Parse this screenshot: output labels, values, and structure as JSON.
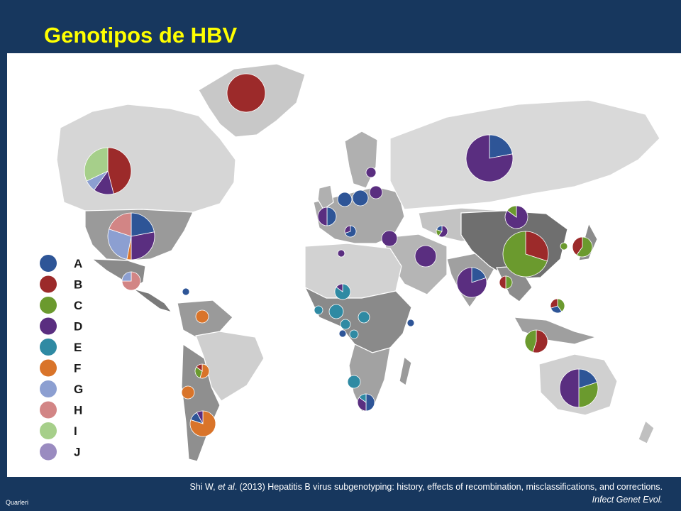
{
  "slide": {
    "title": "Genotipos de HBV",
    "author_footer": "Quarleri"
  },
  "citation": {
    "authors": "Shi W, ",
    "etal": "et al",
    "rest": ". (2013) Hepatitis B virus subgenotyping: history, effects of recombination, misclassifications, and corrections.",
    "journal": "Infect Genet Evol."
  },
  "legend": [
    {
      "label": "A",
      "color": "#2e5597"
    },
    {
      "label": "B",
      "color": "#9c2a2a"
    },
    {
      "label": "C",
      "color": "#6b9a2e"
    },
    {
      "label": "D",
      "color": "#5a2e80"
    },
    {
      "label": "E",
      "color": "#2f8aa3"
    },
    {
      "label": "F",
      "color": "#d9742a"
    },
    {
      "label": "G",
      "color": "#8c9fd1"
    },
    {
      "label": "H",
      "color": "#d28585"
    },
    {
      "label": "I",
      "color": "#a6cf8a"
    },
    {
      "label": "J",
      "color": "#9a8bc0"
    }
  ],
  "map_regions": [
    {
      "name": "greenland",
      "shade": "#c8c8c8"
    },
    {
      "name": "canada",
      "shade": "#d6d6d6"
    },
    {
      "name": "usa",
      "shade": "#9a9a9a"
    },
    {
      "name": "mexico",
      "shade": "#8a8a8a"
    },
    {
      "name": "central-america",
      "shade": "#7a7a7a"
    },
    {
      "name": "south-america-north",
      "shade": "#9a9a9a"
    },
    {
      "name": "brazil",
      "shade": "#cfcfcf"
    },
    {
      "name": "south-america-south",
      "shade": "#8f8f8f"
    },
    {
      "name": "europe",
      "shade": "#a8a8a8"
    },
    {
      "name": "russia",
      "shade": "#d9d9d9"
    },
    {
      "name": "middle-east",
      "shade": "#b5b5b5"
    },
    {
      "name": "north-africa",
      "shade": "#d2d2d2"
    },
    {
      "name": "africa-central",
      "shade": "#8a8a8a"
    },
    {
      "name": "africa-south",
      "shade": "#a2a2a2"
    },
    {
      "name": "central-asia",
      "shade": "#c3c3c3"
    },
    {
      "name": "india",
      "shade": "#a0a0a0"
    },
    {
      "name": "china",
      "shade": "#6f6f6f"
    },
    {
      "name": "southeast-asia",
      "shade": "#8c8c8c"
    },
    {
      "name": "indonesia",
      "shade": "#9f9f9f"
    },
    {
      "name": "australia",
      "shade": "#d0d0d0"
    },
    {
      "name": "japan",
      "shade": "#8c8c8c"
    },
    {
      "name": "scandinavia",
      "shade": "#b0b0b0"
    },
    {
      "name": "new-zealand",
      "shade": "#c0c0c0"
    },
    {
      "name": "madagascar",
      "shade": "#9a9a9a"
    },
    {
      "name": "uk-ireland",
      "shade": "#b0b0b0"
    }
  ],
  "pie_charts": [
    {
      "place": "Greenland",
      "slices": [
        {
          "g": "B",
          "v": 1
        }
      ]
    },
    {
      "place": "Canada",
      "slices": [
        {
          "g": "B",
          "v": 0.46
        },
        {
          "g": "D",
          "v": 0.14
        },
        {
          "g": "G",
          "v": 0.08
        },
        {
          "g": "I",
          "v": 0.32
        }
      ]
    },
    {
      "place": "USA",
      "slices": [
        {
          "g": "A",
          "v": 0.22
        },
        {
          "g": "D",
          "v": 0.28
        },
        {
          "g": "F",
          "v": 0.03
        },
        {
          "g": "G",
          "v": 0.27
        },
        {
          "g": "H",
          "v": 0.2
        }
      ]
    },
    {
      "place": "Mexico",
      "slices": [
        {
          "g": "H",
          "v": 0.75
        },
        {
          "g": "G",
          "v": 0.25
        }
      ]
    },
    {
      "place": "Caribbean",
      "slices": [
        {
          "g": "A",
          "v": 1
        }
      ]
    },
    {
      "place": "Venezuela",
      "slices": [
        {
          "g": "F",
          "v": 1
        }
      ]
    },
    {
      "place": "Bolivia",
      "slices": [
        {
          "g": "F",
          "v": 0.55
        },
        {
          "g": "C",
          "v": 0.3
        },
        {
          "g": "B",
          "v": 0.15
        }
      ]
    },
    {
      "place": "Chile",
      "slices": [
        {
          "g": "F",
          "v": 1
        }
      ]
    },
    {
      "place": "Argentina",
      "slices": [
        {
          "g": "F",
          "v": 0.8
        },
        {
          "g": "A",
          "v": 0.12
        },
        {
          "g": "D",
          "v": 0.08
        }
      ]
    },
    {
      "place": "Russia",
      "slices": [
        {
          "g": "A",
          "v": 0.22
        },
        {
          "g": "D",
          "v": 0.78
        }
      ]
    },
    {
      "place": "Scandinavia",
      "slices": [
        {
          "g": "D",
          "v": 1
        }
      ]
    },
    {
      "place": "UK",
      "slices": [
        {
          "g": "A",
          "v": 0.5
        },
        {
          "g": "D",
          "v": 0.5
        }
      ]
    },
    {
      "place": "Germany",
      "slices": [
        {
          "g": "A",
          "v": 1
        }
      ]
    },
    {
      "place": "Poland",
      "slices": [
        {
          "g": "A",
          "v": 1
        }
      ]
    },
    {
      "place": "Baltic",
      "slices": [
        {
          "g": "D",
          "v": 1
        }
      ]
    },
    {
      "place": "France",
      "slices": [
        {
          "g": "A",
          "v": 0.7
        },
        {
          "g": "D",
          "v": 0.3
        }
      ]
    },
    {
      "place": "Italy",
      "slices": [
        {
          "g": "D",
          "v": 1
        }
      ]
    },
    {
      "place": "Turkey",
      "slices": [
        {
          "g": "D",
          "v": 1
        }
      ]
    },
    {
      "place": "Iran",
      "slices": [
        {
          "g": "D",
          "v": 1
        }
      ]
    },
    {
      "place": "Central Asia",
      "slices": [
        {
          "g": "D",
          "v": 0.6
        },
        {
          "g": "C",
          "v": 0.2
        },
        {
          "g": "A",
          "v": 0.2
        }
      ]
    },
    {
      "place": "Mongolia",
      "slices": [
        {
          "g": "D",
          "v": 0.85
        },
        {
          "g": "C",
          "v": 0.15
        }
      ]
    },
    {
      "place": "China",
      "slices": [
        {
          "g": "B",
          "v": 0.3
        },
        {
          "g": "C",
          "v": 0.7
        }
      ]
    },
    {
      "place": "India",
      "slices": [
        {
          "g": "A",
          "v": 0.2
        },
        {
          "g": "D",
          "v": 0.8
        }
      ]
    },
    {
      "place": "Korea",
      "slices": [
        {
          "g": "C",
          "v": 1
        }
      ]
    },
    {
      "place": "Japan",
      "slices": [
        {
          "g": "C",
          "v": 0.6
        },
        {
          "g": "B",
          "v": 0.4
        }
      ]
    },
    {
      "place": "Vietnam",
      "slices": [
        {
          "g": "C",
          "v": 0.5
        },
        {
          "g": "B",
          "v": 0.5
        }
      ]
    },
    {
      "place": "Philippines",
      "slices": [
        {
          "g": "C",
          "v": 0.4
        },
        {
          "g": "A",
          "v": 0.3
        },
        {
          "g": "B",
          "v": 0.3
        }
      ]
    },
    {
      "place": "Indonesia",
      "slices": [
        {
          "g": "B",
          "v": 0.55
        },
        {
          "g": "C",
          "v": 0.45
        }
      ]
    },
    {
      "place": "Australia",
      "slices": [
        {
          "g": "A",
          "v": 0.2
        },
        {
          "g": "C",
          "v": 0.3
        },
        {
          "g": "D",
          "v": 0.5
        }
      ]
    },
    {
      "place": "Mali",
      "slices": [
        {
          "g": "E",
          "v": 1
        }
      ]
    },
    {
      "place": "Niger",
      "slices": [
        {
          "g": "E",
          "v": 0.85
        },
        {
          "g": "D",
          "v": 0.15
        }
      ]
    },
    {
      "place": "Ghana",
      "slices": [
        {
          "g": "E",
          "v": 1
        }
      ]
    },
    {
      "place": "Nigeria",
      "slices": [
        {
          "g": "E",
          "v": 1
        }
      ]
    },
    {
      "place": "Cameroon",
      "slices": [
        {
          "g": "E",
          "v": 1
        }
      ]
    },
    {
      "place": "Sudan",
      "slices": [
        {
          "g": "E",
          "v": 1
        }
      ]
    },
    {
      "place": "Kenya",
      "slices": [
        {
          "g": "A",
          "v": 1
        }
      ]
    },
    {
      "place": "Angola",
      "slices": [
        {
          "g": "E",
          "v": 1
        }
      ]
    },
    {
      "place": "South Africa",
      "slices": [
        {
          "g": "A",
          "v": 0.5
        },
        {
          "g": "D",
          "v": 0.35
        },
        {
          "g": "E",
          "v": 0.15
        }
      ]
    },
    {
      "place": "Gulf of Guinea",
      "slices": [
        {
          "g": "A",
          "v": 1
        }
      ]
    }
  ]
}
